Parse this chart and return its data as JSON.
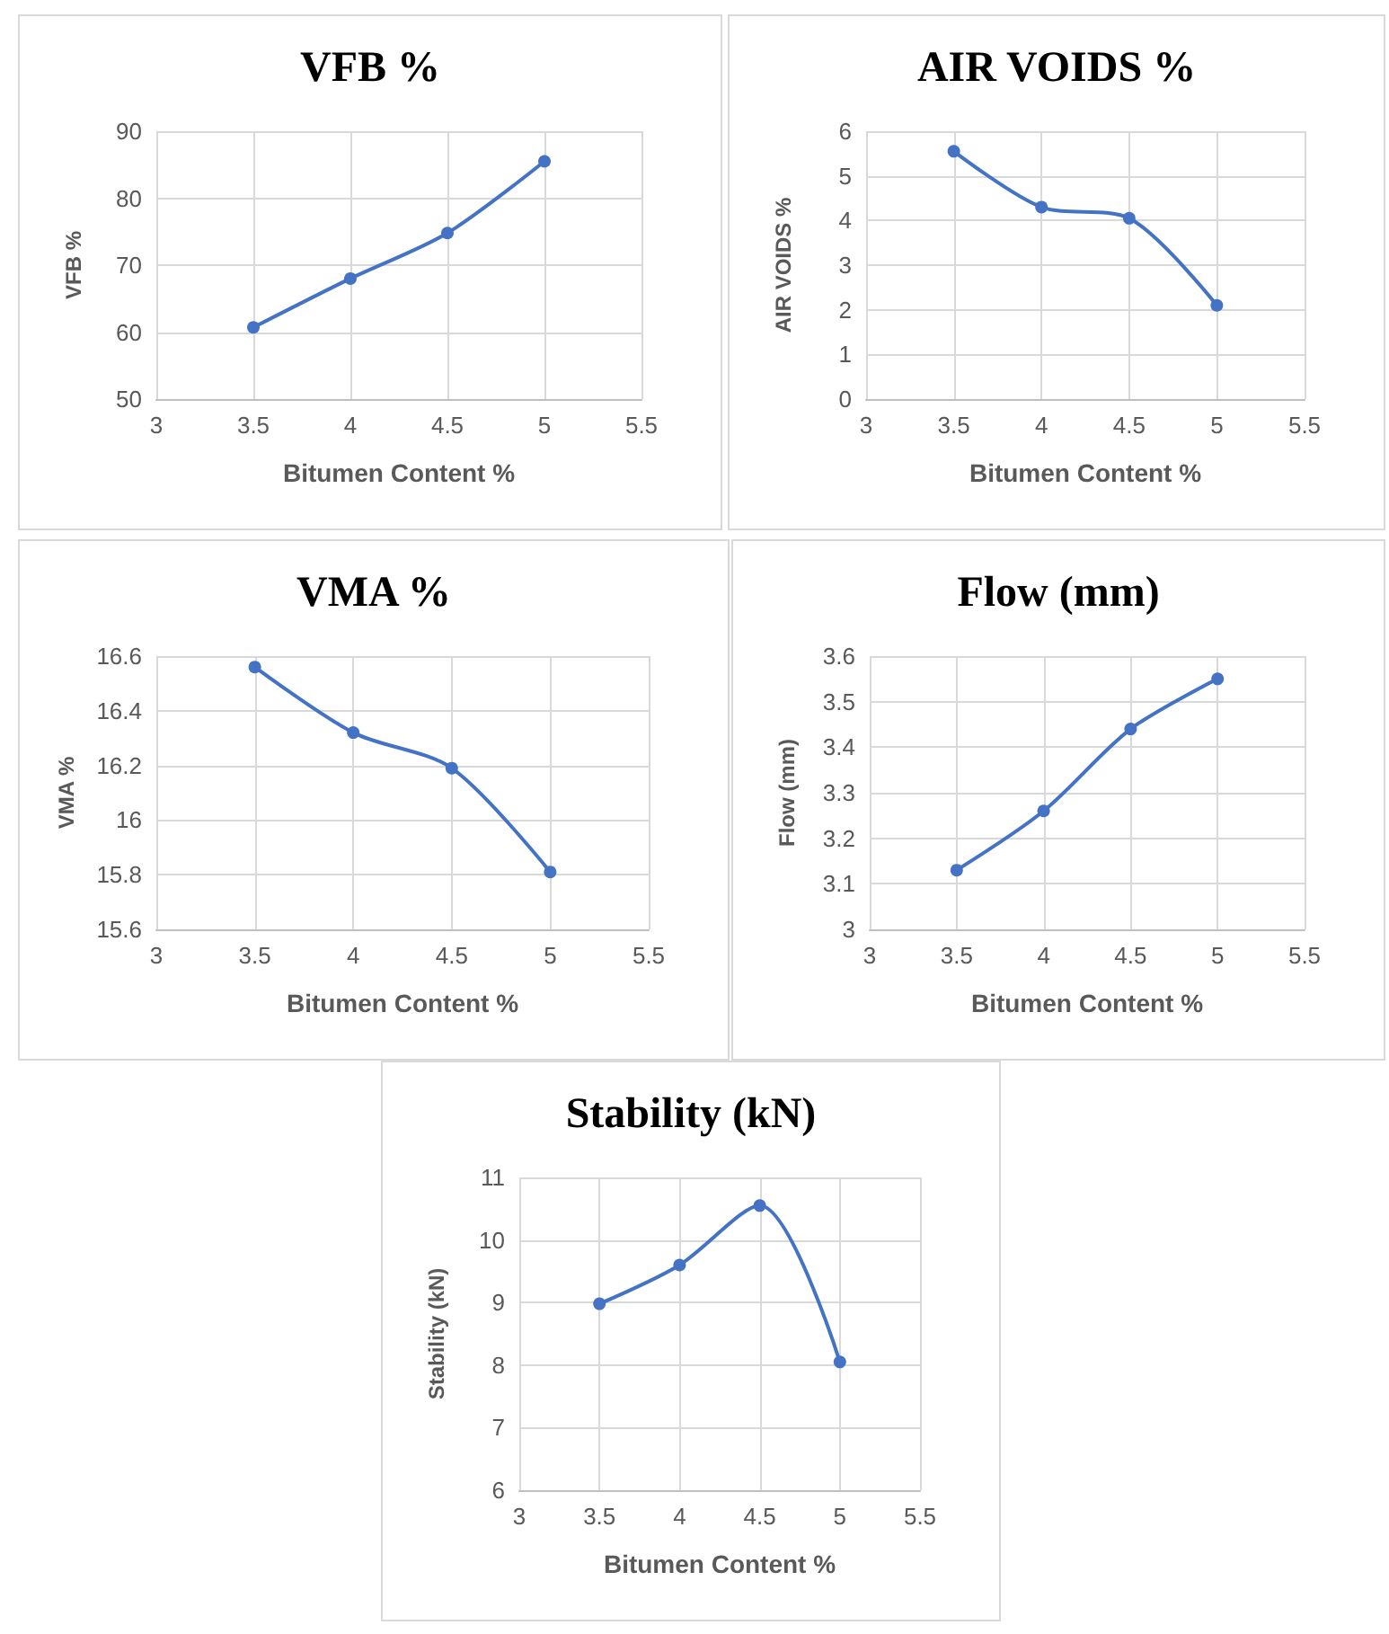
{
  "chart_data": [
    {
      "type": "line",
      "title": "VFB %",
      "xlabel": "Bitumen Content %",
      "ylabel": "VFB %",
      "x": [
        3.5,
        4,
        4.5,
        5
      ],
      "series": [
        {
          "color": "#4472c4",
          "values": [
            60.7,
            68,
            74.8,
            85.5
          ]
        }
      ],
      "xlim": [
        3,
        5.5
      ],
      "xticks": [
        3,
        3.5,
        4,
        4.5,
        5,
        5.5
      ],
      "ylim": [
        50,
        90
      ],
      "yticks": [
        50,
        60,
        70,
        80,
        90
      ],
      "grid": true,
      "marker": "circle",
      "line_style": "solid"
    },
    {
      "type": "line",
      "title": "AIR VOIDS %",
      "xlabel": "Bitumen Content %",
      "ylabel": "AIR VOIDS %",
      "x": [
        3.5,
        4,
        4.5,
        5
      ],
      "series": [
        {
          "color": "#4472c4",
          "values": [
            5.55,
            4.3,
            4.05,
            2.1
          ]
        }
      ],
      "xlim": [
        3,
        5.5
      ],
      "xticks": [
        3,
        3.5,
        4,
        4.5,
        5,
        5.5
      ],
      "ylim": [
        0,
        6
      ],
      "yticks": [
        0,
        1,
        2,
        3,
        4,
        5,
        6
      ],
      "grid": true,
      "marker": "circle",
      "line_style": "solid"
    },
    {
      "type": "line",
      "title": "VMA %",
      "xlabel": "Bitumen Content %",
      "ylabel": "VMA %",
      "x": [
        3.5,
        4,
        4.5,
        5
      ],
      "series": [
        {
          "color": "#4472c4",
          "values": [
            16.56,
            16.32,
            16.19,
            15.81
          ]
        }
      ],
      "xlim": [
        3,
        5.5
      ],
      "xticks": [
        3,
        3.5,
        4,
        4.5,
        5,
        5.5
      ],
      "ylim": [
        15.6,
        16.6
      ],
      "yticks": [
        15.6,
        15.8,
        16,
        16.2,
        16.4,
        16.6
      ],
      "grid": true,
      "marker": "circle",
      "line_style": "solid"
    },
    {
      "type": "line",
      "title": "Flow (mm)",
      "xlabel": "Bitumen Content %",
      "ylabel": "Flow (mm)",
      "x": [
        3.5,
        4,
        4.5,
        5
      ],
      "series": [
        {
          "color": "#4472c4",
          "values": [
            3.13,
            3.26,
            3.44,
            3.55
          ]
        }
      ],
      "xlim": [
        3,
        5.5
      ],
      "xticks": [
        3,
        3.5,
        4,
        4.5,
        5,
        5.5
      ],
      "ylim": [
        3,
        3.6
      ],
      "yticks": [
        3,
        3.1,
        3.2,
        3.3,
        3.4,
        3.5,
        3.6
      ],
      "grid": true,
      "marker": "circle",
      "line_style": "solid"
    },
    {
      "type": "line",
      "title": "Stability (kN)",
      "xlabel": "Bitumen Content %",
      "ylabel": "Stability (kN)",
      "x": [
        3.5,
        4,
        4.5,
        5
      ],
      "series": [
        {
          "color": "#4472c4",
          "values": [
            8.98,
            9.6,
            10.55,
            8.05
          ]
        }
      ],
      "xlim": [
        3,
        5.5
      ],
      "xticks": [
        3,
        3.5,
        4,
        4.5,
        5,
        5.5
      ],
      "ylim": [
        6,
        11
      ],
      "yticks": [
        6,
        7,
        8,
        9,
        10,
        11
      ],
      "grid": true,
      "marker": "circle",
      "line_style": "solid"
    }
  ]
}
